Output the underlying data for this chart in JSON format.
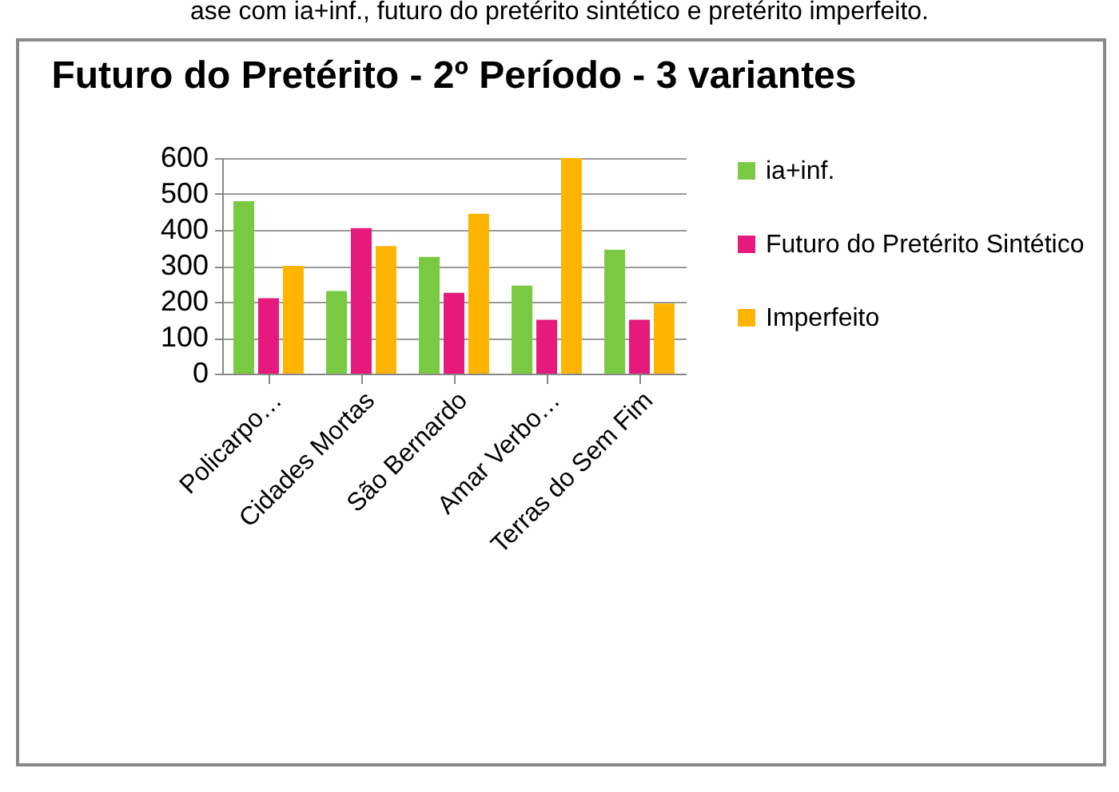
{
  "chart_data": {
    "type": "bar",
    "title": "Futuro do Pretérito - 2º Período - 3 variantes",
    "annotations": [
      "ase com ia+inf., futuro do pretérito sintético e pretérito imperfeito."
    ],
    "categories": [
      "Policarpo…",
      "Cidades Mortas",
      "São Bernardo",
      "Amar Verbo…",
      "Terras do Sem Fim"
    ],
    "series": [
      {
        "name": "ia+inf.",
        "color": "#7ac943",
        "values": [
          480,
          230,
          325,
          245,
          345
        ]
      },
      {
        "name": "Futuro do Pretérito Sintético",
        "color": "#e6197d",
        "values": [
          210,
          405,
          225,
          150,
          150
        ]
      },
      {
        "name": "Imperfeito",
        "color": "#ffb400",
        "values": [
          300,
          355,
          445,
          600,
          195
        ]
      }
    ],
    "ylim": [
      0,
      600
    ],
    "yticks": [
      0,
      100,
      200,
      300,
      400,
      500,
      600
    ],
    "grid": "y",
    "legend": "right"
  }
}
